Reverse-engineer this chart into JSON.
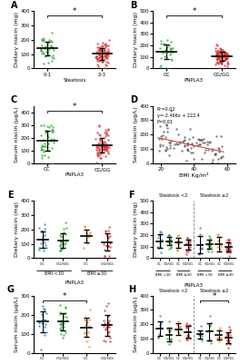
{
  "panel_A": {
    "label": "A",
    "groups": [
      "0-1",
      "2-3"
    ],
    "xlabel": "Steatosis",
    "ylabel": "Dietary niacin (mg)",
    "colors": [
      "#2ca02c",
      "#d62728"
    ],
    "means": [
      130,
      100
    ],
    "sds": [
      50,
      45
    ],
    "n": [
      40,
      80
    ],
    "ylim": [
      0,
      400
    ],
    "yticks": [
      0,
      100,
      200,
      300,
      400
    ],
    "sig": "*"
  },
  "panel_B": {
    "label": "B",
    "groups": [
      "CC",
      "CG/GG"
    ],
    "xlabel": "PNPLA3",
    "ylabel": "Dietary niacin (mg)",
    "colors": [
      "#2ca02c",
      "#d62728"
    ],
    "means": [
      150,
      100
    ],
    "sds": [
      60,
      40
    ],
    "n": [
      30,
      90
    ],
    "ylim": [
      0,
      500
    ],
    "yticks": [
      0,
      100,
      200,
      300,
      400,
      500
    ],
    "sig": "*"
  },
  "panel_C": {
    "label": "C",
    "groups": [
      "CC",
      "CG/GG"
    ],
    "xlabel": "PNPLA3",
    "ylabel": "Serum niacin (μg/L)",
    "colors": [
      "#2ca02c",
      "#d62728"
    ],
    "means": [
      185,
      150
    ],
    "sds": [
      70,
      60
    ],
    "n": [
      40,
      80
    ],
    "ylim": [
      0,
      450
    ],
    "yticks": [
      0,
      100,
      200,
      300,
      400
    ],
    "sig": "*"
  },
  "panel_D": {
    "label": "D",
    "xlabel": "BMI Kg/m²",
    "ylabel": "Serum niacin (μg/L)",
    "annotation": "R²=0.02\ny=-2.466x + 222.4\nP=0.01",
    "xlim": [
      15,
      65
    ],
    "ylim": [
      0,
      400
    ],
    "xticks": [
      20,
      40,
      60
    ],
    "yticks": [
      0,
      100,
      200,
      300,
      400
    ],
    "slope": -2.466,
    "intercept": 222.4,
    "n_points": 100,
    "color": "#333333"
  },
  "panel_E": {
    "label": "E",
    "groups": [
      "CC",
      "CG/GG",
      "CC",
      "CG/GG"
    ],
    "group_labels": [
      "BMI <30",
      "BMI ≥30"
    ],
    "xlabel": "PNPLA3",
    "ylabel": "Dietary niacin (mg)",
    "colors": [
      "#1f77b4",
      "#2ca02c",
      "#ff7f0e",
      "#d62728"
    ],
    "means": [
      150,
      120,
      145,
      110
    ],
    "sds": [
      60,
      50,
      55,
      45
    ],
    "n": [
      15,
      25,
      10,
      20
    ],
    "ylim": [
      0,
      400
    ],
    "yticks": [
      0,
      100,
      200,
      300,
      400
    ]
  },
  "panel_F": {
    "label": "F",
    "groups": [
      "CC",
      "CG/GG",
      "CC",
      "CG/GG",
      "CC",
      "CG/GG",
      "CC",
      "CG/GG"
    ],
    "group_labels": [
      "BMI <30",
      "BMI ≥30",
      "BMI <30",
      "BMI ≥30"
    ],
    "section_labels": [
      "Steatosis <2",
      "Steatosis ≥2"
    ],
    "xlabel": "PNPLA3",
    "ylabel": "Dietary niacin (mg)",
    "colors": [
      "#1f77b4",
      "#2ca02c",
      "#ff7f0e",
      "#d62728",
      "#1f77b4",
      "#2ca02c",
      "#ff7f0e",
      "#d62728"
    ],
    "means": [
      160,
      150,
      145,
      130,
      145,
      140,
      135,
      115
    ],
    "sds": [
      55,
      50,
      50,
      45,
      55,
      50,
      45,
      40
    ],
    "n": [
      10,
      15,
      8,
      15,
      8,
      12,
      7,
      18
    ],
    "ylim": [
      0,
      500
    ],
    "yticks": [
      0,
      100,
      200,
      300,
      400,
      500
    ]
  },
  "panel_G": {
    "label": "G",
    "groups": [
      "CC",
      "CG/GG",
      "CC",
      "CG/GG"
    ],
    "group_labels": [
      "BMI <30",
      "BMI ≥30"
    ],
    "xlabel": "PNPLA3",
    "ylabel": "Serum niacin (μg/L)",
    "colors": [
      "#1f77b4",
      "#2ca02c",
      "#ff7f0e",
      "#d62728"
    ],
    "means": [
      185,
      175,
      145,
      140
    ],
    "sds": [
      55,
      55,
      50,
      50
    ],
    "n": [
      18,
      25,
      12,
      22
    ],
    "ylim": [
      0,
      300
    ],
    "yticks": [
      0,
      100,
      200,
      300
    ],
    "sig": "*",
    "sig_groups": [
      0,
      2
    ]
  },
  "panel_H": {
    "label": "H",
    "groups": [
      "CC",
      "CG/GG",
      "CC",
      "CG/GG",
      "CC",
      "CG/GG",
      "CC",
      "CG/GG"
    ],
    "group_labels": [
      "BMI <30",
      "BMI ≥30",
      "BMI <30",
      "BMI ≥30"
    ],
    "section_labels": [
      "Steatosis <2",
      "Steatosis ≥2"
    ],
    "xlabel": "PNPLA3",
    "ylabel": "Serum niacin (μg/L)",
    "colors": [
      "#1f77b4",
      "#2ca02c",
      "#ff7f0e",
      "#d62728",
      "#1f77b4",
      "#2ca02c",
      "#ff7f0e",
      "#d62728"
    ],
    "means": [
      165,
      155,
      155,
      145,
      155,
      150,
      140,
      110
    ],
    "sds": [
      50,
      45,
      50,
      45,
      50,
      45,
      50,
      40
    ],
    "n": [
      8,
      12,
      7,
      15,
      7,
      10,
      6,
      18
    ],
    "ylim": [
      0,
      400
    ],
    "yticks": [
      0,
      100,
      200,
      300,
      400
    ],
    "sig": "*",
    "sig_groups": [
      4,
      7
    ]
  }
}
